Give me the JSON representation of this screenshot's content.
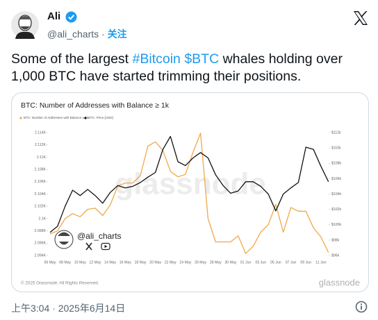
{
  "tweet": {
    "name": "Ali",
    "handle": "@ali_charts",
    "separator": "·",
    "follow": "关注",
    "text_before": "Some of the largest ",
    "hashtag": "#Bitcoin",
    "cashtag": "$BTC",
    "text_after": " whales holding over 1,000 BTC have started trimming their positions.",
    "timestamp": "上午3:04 · 2025年6月14日"
  },
  "chart_data": {
    "type": "line",
    "title": "BTC: Number of Addresses with Balance ≥ 1k",
    "categories": [
      "06 May",
      null,
      "08 May",
      null,
      "10 May",
      null,
      "12 May",
      null,
      "14 May",
      null,
      "16 May",
      null,
      "18 May",
      null,
      "20 May",
      null,
      "22 May",
      null,
      "24 May",
      null,
      "26 May",
      null,
      "28 May",
      null,
      "30 May",
      null,
      "01 Jun",
      null,
      "03 Jun",
      null,
      "05 Jun",
      null,
      "07 Jun",
      null,
      "09 Jun",
      null,
      "11 Jun",
      null
    ],
    "series": [
      {
        "name": "BTC: Number of Addresses with Balance ≥ 1k",
        "color": "#f0a84a",
        "axis": "y",
        "values": [
          2.0975,
          2.098,
          2.1,
          2.1008,
          2.1003,
          2.1015,
          2.1017,
          2.1005,
          2.1022,
          2.1053,
          2.1058,
          2.1058,
          2.107,
          2.1118,
          2.1125,
          2.1111,
          2.1077,
          2.1068,
          2.1072,
          2.1108,
          2.1139,
          2.1,
          2.0962,
          2.0962,
          2.0962,
          2.0972,
          2.0943,
          2.0955,
          2.0978,
          2.099,
          2.1023,
          2.0978,
          2.1018,
          2.1012,
          2.1012,
          2.0985,
          2.097,
          2.0945
        ]
      },
      {
        "name": "BTC: Price [USD]",
        "color": "#111111",
        "axis": "y2",
        "values": [
          99,
          99.8,
          102.4,
          104.5,
          103.8,
          104.6,
          103.8,
          102.8,
          104.2,
          105.1,
          104.8,
          105,
          105.5,
          106.2,
          106.8,
          109.8,
          111.5,
          108.2,
          107.7,
          108.7,
          109.4,
          108.7,
          106.5,
          105.1,
          104.1,
          104.4,
          105.6,
          105.6,
          105,
          104,
          101.8,
          104,
          104.8,
          105.5,
          110.1,
          109.8,
          107.6,
          105.6
        ]
      }
    ],
    "ylim": [
      2.094,
      2.114
    ],
    "yticks": [
      {
        "value": 2.094,
        "label": "2.094K"
      },
      {
        "value": 2.096,
        "label": "2.096K"
      },
      {
        "value": 2.098,
        "label": "2.098K"
      },
      {
        "value": 2.1,
        "label": "2.1K"
      },
      {
        "value": 2.102,
        "label": "2.102K"
      },
      {
        "value": 2.104,
        "label": "2.104K"
      },
      {
        "value": 2.106,
        "label": "2.106K"
      },
      {
        "value": 2.108,
        "label": "2.108K"
      },
      {
        "value": 2.11,
        "label": "2.11K"
      },
      {
        "value": 2.112,
        "label": "2.112K"
      },
      {
        "value": 2.114,
        "label": "2.114K"
      }
    ],
    "y2lim": [
      96,
      112
    ],
    "y2ticks": [
      {
        "value": 96,
        "label": "$96k"
      },
      {
        "value": 98,
        "label": "$98k"
      },
      {
        "value": 100,
        "label": "$100k"
      },
      {
        "value": 102,
        "label": "$102k"
      },
      {
        "value": 104,
        "label": "$104k"
      },
      {
        "value": 106,
        "label": "$106k"
      },
      {
        "value": 108,
        "label": "$108k"
      },
      {
        "value": 110,
        "label": "$110k"
      },
      {
        "value": 112,
        "label": "$112k"
      }
    ],
    "grid": false,
    "watermark": "glassnode",
    "overlay_handle": "@ali_charts",
    "footer": "© 2025 Glassnode. All Rights Reserved.",
    "brand": "glassnode"
  }
}
